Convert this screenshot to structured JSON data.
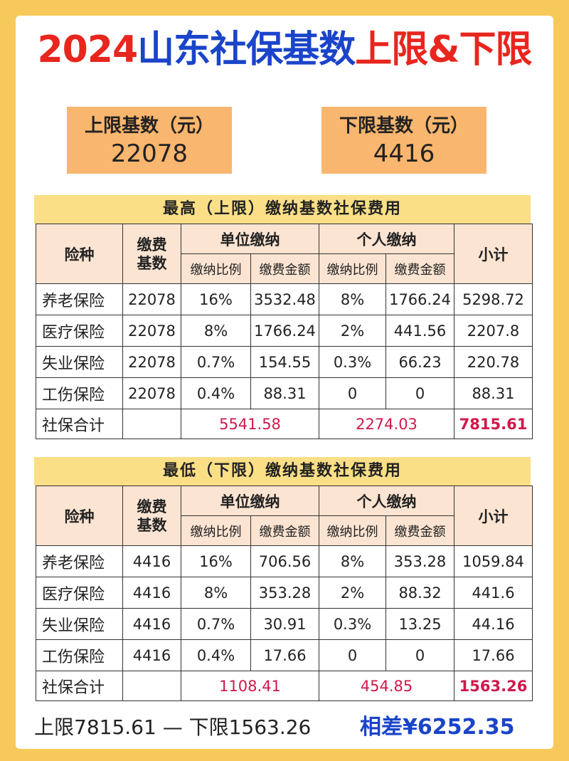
{
  "title": {
    "year": "2024",
    "main": "山东社保基数",
    "tail": "上限&下限"
  },
  "upper_box": {
    "label": "上限基数（元）",
    "value": "22078"
  },
  "lower_box": {
    "label": "下限基数（元）",
    "value": "4416"
  },
  "high": {
    "heading": "最高（上限）缴纳基数社保费用",
    "headers": {
      "type": "险种",
      "base": "缴费\n基数",
      "unit": "单位缴纳",
      "personal": "个人缴纳",
      "subtotal": "小计",
      "rate": "缴纳比例",
      "amount": "缴费金额"
    },
    "rows": [
      {
        "name": "养老保险",
        "base": "22078",
        "unit_rate": "16%",
        "unit_amount": "3532.48",
        "p_rate": "8%",
        "p_amount": "1766.24",
        "subtotal": "5298.72"
      },
      {
        "name": "医疗保险",
        "base": "22078",
        "unit_rate": "8%",
        "unit_amount": "1766.24",
        "p_rate": "2%",
        "p_amount": "441.56",
        "subtotal": "2207.8"
      },
      {
        "name": "失业保险",
        "base": "22078",
        "unit_rate": "0.7%",
        "unit_amount": "154.55",
        "p_rate": "0.3%",
        "p_amount": "66.23",
        "subtotal": "220.78"
      },
      {
        "name": "工伤保险",
        "base": "22078",
        "unit_rate": "0.4%",
        "unit_amount": "88.31",
        "p_rate": "0",
        "p_amount": "0",
        "subtotal": "88.31"
      }
    ],
    "total": {
      "label": "社保合计",
      "unit": "5541.58",
      "personal": "2274.03",
      "subtotal": "7815.61"
    }
  },
  "low": {
    "heading": "最低（下限）缴纳基数社保费用",
    "headers": {
      "type": "险种",
      "base": "缴费\n基数",
      "unit": "单位缴纳",
      "personal": "个人缴纳",
      "subtotal": "小计",
      "rate": "缴纳比例",
      "amount": "缴费金额"
    },
    "rows": [
      {
        "name": "养老保险",
        "base": "4416",
        "unit_rate": "16%",
        "unit_amount": "706.56",
        "p_rate": "8%",
        "p_amount": "353.28",
        "subtotal": "1059.84"
      },
      {
        "name": "医疗保险",
        "base": "4416",
        "unit_rate": "8%",
        "unit_amount": "353.28",
        "p_rate": "2%",
        "p_amount": "88.32",
        "subtotal": "441.6"
      },
      {
        "name": "失业保险",
        "base": "4416",
        "unit_rate": "0.7%",
        "unit_amount": "30.91",
        "p_rate": "0.3%",
        "p_amount": "13.25",
        "subtotal": "44.16"
      },
      {
        "name": "工伤保险",
        "base": "4416",
        "unit_rate": "0.4%",
        "unit_amount": "17.66",
        "p_rate": "0",
        "p_amount": "0",
        "subtotal": "17.66"
      }
    ],
    "total": {
      "label": "社保合计",
      "unit": "1108.41",
      "personal": "454.85",
      "subtotal": "1563.26"
    }
  },
  "bottom": {
    "summary": "上限7815.61 — 下限1563.26",
    "difference": "相差¥6252.35"
  }
}
